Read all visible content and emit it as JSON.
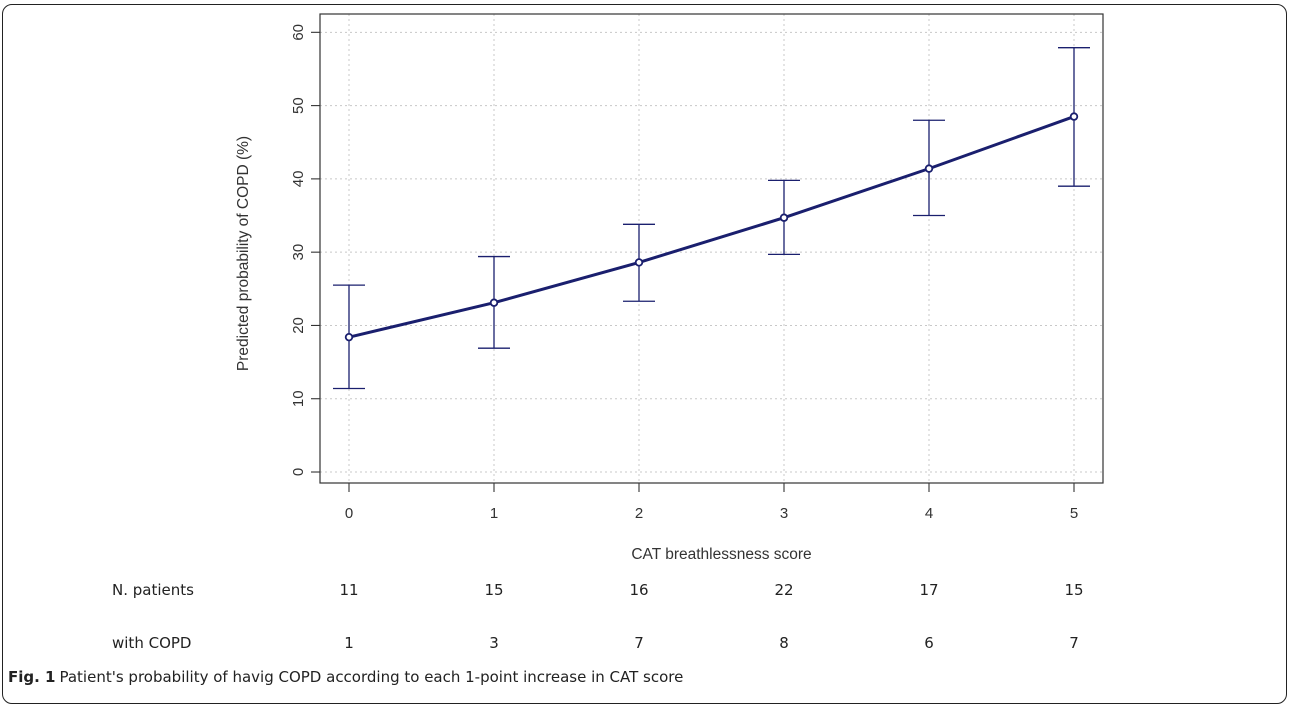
{
  "chart_data": {
    "type": "line",
    "xlabel": "CAT breathlessness score",
    "ylabel": "Predicted probability of COPD (%)",
    "x": [
      0,
      1,
      2,
      3,
      4,
      5
    ],
    "x_ticks": [
      "0",
      "1",
      "2",
      "3",
      "4",
      "5"
    ],
    "y_ticks": [
      "0",
      "10",
      "20",
      "30",
      "40",
      "50",
      "60"
    ],
    "xlim": [
      -0.2,
      5.2
    ],
    "ylim": [
      -1.5,
      62.5
    ],
    "grid": true,
    "series": [
      {
        "values": [
          18.4,
          23.1,
          28.6,
          34.7,
          41.4,
          48.5
        ],
        "ci_lower": [
          11.4,
          16.9,
          23.3,
          29.7,
          35.0,
          39.0
        ],
        "ci_upper": [
          25.5,
          29.4,
          33.8,
          39.8,
          48.0,
          57.9
        ],
        "color": "#1a1f6e"
      }
    ]
  },
  "table": {
    "rows": [
      {
        "label": "N. patients",
        "values": [
          "11",
          "15",
          "16",
          "22",
          "17",
          "15"
        ]
      },
      {
        "label": "with COPD",
        "values": [
          "1",
          "3",
          "7",
          "8",
          "6",
          "7"
        ]
      }
    ]
  },
  "caption": {
    "prefix": "Fig. 1",
    "text": "Patient's probability of havig COPD according to each 1-point increase in CAT score"
  }
}
